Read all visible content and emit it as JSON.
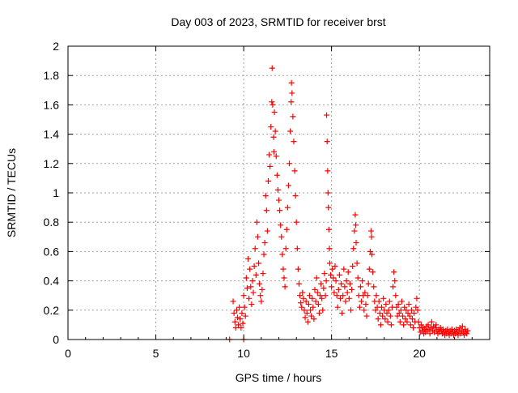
{
  "chart_data": {
    "type": "scatter",
    "title": "Day 003 of 2023, SRMTID for receiver brst",
    "xlabel": "GPS time / hours",
    "ylabel": "SRMTID / TECUs",
    "xlim": [
      0,
      24
    ],
    "ylim": [
      0,
      2
    ],
    "grid": true,
    "legend": "none",
    "marker": "+",
    "colors": {
      "marker": "#ff0000",
      "grid": "#a0a0a0",
      "axis": "#000000"
    },
    "x_ticks": [
      0,
      5,
      10,
      15,
      20
    ],
    "x_tick_labels": [
      "0",
      "5",
      "10",
      "15",
      "20"
    ],
    "y_ticks": [
      0,
      0.2,
      0.4,
      0.6,
      0.8,
      1,
      1.2,
      1.4,
      1.6,
      1.8,
      2
    ],
    "y_tick_labels": [
      "0",
      "0.2",
      "0.4",
      "0.6",
      "0.8",
      "1",
      "1.2",
      "1.4",
      "1.6",
      "1.8",
      "2"
    ],
    "series": [
      {
        "name": "SRMTID",
        "points": [
          [
            9.2,
            0.0
          ],
          [
            9.4,
            0.26
          ],
          [
            9.45,
            0.18
          ],
          [
            9.5,
            0.12
          ],
          [
            9.55,
            0.08
          ],
          [
            9.6,
            0.2
          ],
          [
            9.65,
            0.15
          ],
          [
            9.7,
            0.1
          ],
          [
            9.75,
            0.22
          ],
          [
            9.8,
            0.14
          ],
          [
            9.85,
            0.08
          ],
          [
            9.9,
            0.18
          ],
          [
            9.95,
            0.11
          ],
          [
            10.0,
            0.0
          ],
          [
            10.0,
            0.3
          ],
          [
            10.05,
            0.22
          ],
          [
            10.1,
            0.16
          ],
          [
            10.15,
            0.42
          ],
          [
            10.2,
            0.35
          ],
          [
            10.25,
            0.55
          ],
          [
            10.3,
            0.28
          ],
          [
            10.35,
            0.48
          ],
          [
            10.4,
            0.36
          ],
          [
            10.45,
            0.24
          ],
          [
            10.5,
            0.4
          ],
          [
            10.55,
            0.32
          ],
          [
            10.6,
            0.5
          ],
          [
            10.65,
            0.62
          ],
          [
            10.7,
            0.44
          ],
          [
            10.75,
            0.8
          ],
          [
            10.8,
            0.7
          ],
          [
            10.85,
            0.52
          ],
          [
            10.9,
            0.38
          ],
          [
            10.95,
            0.3
          ],
          [
            11.0,
            0.26
          ],
          [
            11.05,
            0.34
          ],
          [
            11.1,
            0.45
          ],
          [
            11.15,
            0.58
          ],
          [
            11.2,
            0.66
          ],
          [
            11.25,
            0.98
          ],
          [
            11.3,
            0.88
          ],
          [
            11.35,
            0.74
          ],
          [
            11.4,
            1.08
          ],
          [
            11.45,
            1.26
          ],
          [
            11.5,
            1.18
          ],
          [
            11.55,
            1.45
          ],
          [
            11.6,
            1.62
          ],
          [
            11.62,
            1.85
          ],
          [
            11.65,
            1.6
          ],
          [
            11.7,
            1.38
          ],
          [
            11.72,
            1.28
          ],
          [
            11.75,
            1.55
          ],
          [
            11.8,
            1.42
          ],
          [
            11.85,
            1.25
          ],
          [
            11.9,
            1.12
          ],
          [
            11.95,
            1.02
          ],
          [
            12.0,
            0.95
          ],
          [
            12.05,
            0.88
          ],
          [
            12.1,
            0.78
          ],
          [
            12.15,
            0.7
          ],
          [
            12.2,
            0.58
          ],
          [
            12.25,
            0.48
          ],
          [
            12.3,
            0.42
          ],
          [
            12.35,
            0.36
          ],
          [
            12.4,
            0.62
          ],
          [
            12.45,
            0.75
          ],
          [
            12.5,
            0.9
          ],
          [
            12.55,
            1.05
          ],
          [
            12.6,
            1.2
          ],
          [
            12.65,
            1.42
          ],
          [
            12.7,
            1.62
          ],
          [
            12.72,
            1.75
          ],
          [
            12.75,
            1.68
          ],
          [
            12.8,
            1.52
          ],
          [
            12.85,
            1.35
          ],
          [
            12.9,
            1.15
          ],
          [
            12.95,
            0.98
          ],
          [
            13.0,
            0.8
          ],
          [
            13.05,
            0.62
          ],
          [
            13.1,
            0.48
          ],
          [
            13.15,
            0.38
          ],
          [
            13.2,
            0.3
          ],
          [
            13.25,
            0.25
          ],
          [
            13.3,
            0.22
          ],
          [
            13.35,
            0.32
          ],
          [
            13.4,
            0.28
          ],
          [
            13.45,
            0.2
          ],
          [
            13.5,
            0.15
          ],
          [
            13.55,
            0.26
          ],
          [
            13.6,
            0.18
          ],
          [
            13.65,
            0.12
          ],
          [
            13.7,
            0.24
          ],
          [
            13.75,
            0.3
          ],
          [
            13.8,
            0.2
          ],
          [
            13.85,
            0.16
          ],
          [
            13.9,
            0.28
          ],
          [
            13.95,
            0.22
          ],
          [
            14.0,
            0.14
          ],
          [
            14.05,
            0.34
          ],
          [
            14.1,
            0.26
          ],
          [
            14.15,
            0.42
          ],
          [
            14.2,
            0.32
          ],
          [
            14.25,
            0.24
          ],
          [
            14.3,
            0.18
          ],
          [
            14.35,
            0.3
          ],
          [
            14.4,
            0.38
          ],
          [
            14.45,
            0.28
          ],
          [
            14.5,
            0.2
          ],
          [
            14.55,
            0.35
          ],
          [
            14.6,
            0.45
          ],
          [
            14.65,
            0.3
          ],
          [
            14.7,
            0.4
          ],
          [
            14.72,
            1.53
          ],
          [
            14.75,
            1.35
          ],
          [
            14.78,
            1.15
          ],
          [
            14.8,
            1.0
          ],
          [
            14.82,
            0.9
          ],
          [
            14.85,
            0.75
          ],
          [
            14.88,
            0.62
          ],
          [
            14.9,
            0.52
          ],
          [
            14.95,
            0.44
          ],
          [
            15.0,
            0.36
          ],
          [
            15.05,
            0.48
          ],
          [
            15.1,
            0.42
          ],
          [
            15.15,
            0.32
          ],
          [
            15.2,
            0.5
          ],
          [
            15.25,
            0.4
          ],
          [
            15.3,
            0.3
          ],
          [
            15.35,
            0.22
          ],
          [
            15.4,
            0.34
          ],
          [
            15.45,
            0.44
          ],
          [
            15.5,
            0.28
          ],
          [
            15.55,
            0.38
          ],
          [
            15.6,
            0.18
          ],
          [
            15.65,
            0.3
          ],
          [
            15.7,
            0.48
          ],
          [
            15.75,
            0.36
          ],
          [
            15.8,
            0.26
          ],
          [
            15.85,
            0.4
          ],
          [
            15.9,
            0.32
          ],
          [
            15.95,
            0.46
          ],
          [
            16.0,
            0.28
          ],
          [
            16.05,
            0.38
          ],
          [
            16.1,
            0.2
          ],
          [
            16.15,
            0.34
          ],
          [
            16.2,
            0.5
          ],
          [
            16.25,
            0.62
          ],
          [
            16.3,
            0.74
          ],
          [
            16.35,
            0.85
          ],
          [
            16.38,
            0.78
          ],
          [
            16.4,
            0.66
          ],
          [
            16.45,
            0.52
          ],
          [
            16.5,
            0.42
          ],
          [
            16.55,
            0.3
          ],
          [
            16.6,
            0.22
          ],
          [
            16.65,
            0.36
          ],
          [
            16.7,
            0.26
          ],
          [
            16.75,
            0.4
          ],
          [
            16.8,
            0.3
          ],
          [
            16.85,
            0.2
          ],
          [
            16.9,
            0.32
          ],
          [
            16.95,
            0.24
          ],
          [
            17.0,
            0.16
          ],
          [
            17.05,
            0.3
          ],
          [
            17.1,
            0.38
          ],
          [
            17.15,
            0.48
          ],
          [
            17.2,
            0.6
          ],
          [
            17.25,
            0.74
          ],
          [
            17.28,
            0.7
          ],
          [
            17.3,
            0.58
          ],
          [
            17.35,
            0.46
          ],
          [
            17.4,
            0.36
          ],
          [
            17.45,
            0.26
          ],
          [
            17.5,
            0.2
          ],
          [
            17.55,
            0.3
          ],
          [
            17.6,
            0.22
          ],
          [
            17.65,
            0.14
          ],
          [
            17.7,
            0.26
          ],
          [
            17.75,
            0.18
          ],
          [
            17.8,
            0.1
          ],
          [
            17.85,
            0.22
          ],
          [
            17.9,
            0.16
          ],
          [
            17.95,
            0.28
          ],
          [
            18.0,
            0.2
          ],
          [
            18.05,
            0.14
          ],
          [
            18.1,
            0.24
          ],
          [
            18.15,
            0.18
          ],
          [
            18.2,
            0.12
          ],
          [
            18.25,
            0.2
          ],
          [
            18.3,
            0.26
          ],
          [
            18.35,
            0.16
          ],
          [
            18.4,
            0.1
          ],
          [
            18.45,
            0.22
          ],
          [
            18.5,
            0.36
          ],
          [
            18.55,
            0.46
          ],
          [
            18.6,
            0.4
          ],
          [
            18.65,
            0.3
          ],
          [
            18.7,
            0.22
          ],
          [
            18.75,
            0.16
          ],
          [
            18.8,
            0.24
          ],
          [
            18.85,
            0.18
          ],
          [
            18.9,
            0.12
          ],
          [
            18.95,
            0.2
          ],
          [
            19.0,
            0.26
          ],
          [
            19.05,
            0.16
          ],
          [
            19.1,
            0.1
          ],
          [
            19.15,
            0.22
          ],
          [
            19.2,
            0.14
          ],
          [
            19.25,
            0.2
          ],
          [
            19.3,
            0.12
          ],
          [
            19.35,
            0.18
          ],
          [
            19.4,
            0.24
          ],
          [
            19.45,
            0.16
          ],
          [
            19.5,
            0.1
          ],
          [
            19.55,
            0.2
          ],
          [
            19.6,
            0.14
          ],
          [
            19.65,
            0.08
          ],
          [
            19.7,
            0.18
          ],
          [
            19.75,
            0.12
          ],
          [
            19.8,
            0.22
          ],
          [
            19.85,
            0.28
          ],
          [
            19.9,
            0.2
          ],
          [
            19.95,
            0.12
          ],
          [
            20.0,
            0.08
          ],
          [
            20.05,
            0.05
          ],
          [
            20.1,
            0.1
          ],
          [
            20.15,
            0.06
          ],
          [
            20.2,
            0.08
          ],
          [
            20.25,
            0.04
          ],
          [
            20.3,
            0.07
          ],
          [
            20.35,
            0.05
          ],
          [
            20.4,
            0.09
          ],
          [
            20.45,
            0.06
          ],
          [
            20.5,
            0.1
          ],
          [
            20.55,
            0.07
          ],
          [
            20.6,
            0.04
          ],
          [
            20.65,
            0.08
          ],
          [
            20.7,
            0.12
          ],
          [
            20.75,
            0.06
          ],
          [
            20.8,
            0.09
          ],
          [
            20.85,
            0.05
          ],
          [
            20.9,
            0.08
          ],
          [
            20.95,
            0.1
          ],
          [
            21.0,
            0.06
          ],
          [
            21.05,
            0.04
          ],
          [
            21.1,
            0.07
          ],
          [
            21.15,
            0.05
          ],
          [
            21.2,
            0.08
          ],
          [
            21.25,
            0.06
          ],
          [
            21.3,
            0.04
          ],
          [
            21.35,
            0.07
          ],
          [
            21.4,
            0.05
          ],
          [
            21.45,
            0.03
          ],
          [
            21.5,
            0.06
          ],
          [
            21.55,
            0.04
          ],
          [
            21.6,
            0.07
          ],
          [
            21.65,
            0.05
          ],
          [
            21.7,
            0.03
          ],
          [
            21.75,
            0.06
          ],
          [
            21.8,
            0.04
          ],
          [
            21.85,
            0.07
          ],
          [
            21.9,
            0.05
          ],
          [
            21.95,
            0.03
          ],
          [
            22.0,
            0.06
          ],
          [
            22.05,
            0.04
          ],
          [
            22.1,
            0.07
          ],
          [
            22.15,
            0.05
          ],
          [
            22.2,
            0.03
          ],
          [
            22.25,
            0.06
          ],
          [
            22.3,
            0.08
          ],
          [
            22.35,
            0.04
          ],
          [
            22.4,
            0.06
          ],
          [
            22.45,
            0.09
          ],
          [
            22.5,
            0.05
          ],
          [
            22.55,
            0.03
          ],
          [
            22.6,
            0.07
          ],
          [
            22.65,
            0.05
          ],
          [
            22.7,
            0.04
          ],
          [
            22.75,
            0.06
          ]
        ]
      }
    ]
  }
}
